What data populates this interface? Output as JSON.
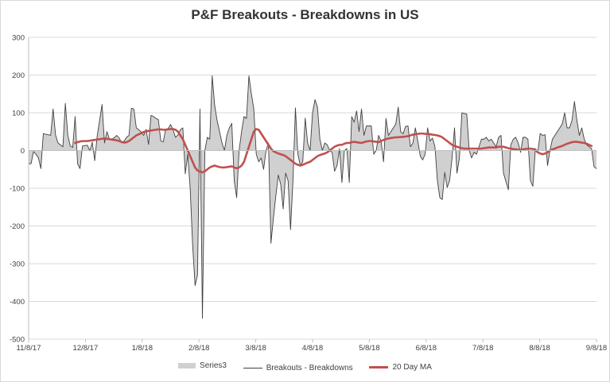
{
  "chart_data": {
    "type": "area",
    "title": "P&F Breakouts - Breakdowns in US",
    "xlabel": "",
    "ylabel": "",
    "ylim": [
      -500,
      300
    ],
    "yticks": [
      -500,
      -400,
      -300,
      -200,
      -100,
      0,
      100,
      200,
      300
    ],
    "xticks": [
      "11/8/17",
      "12/8/17",
      "1/8/18",
      "2/8/18",
      "3/8/18",
      "4/8/18",
      "5/8/18",
      "6/8/18",
      "7/8/18",
      "8/8/18",
      "9/8/18"
    ],
    "grid": true,
    "legend_position": "bottom",
    "series": [
      {
        "name": "Series3",
        "kind": "area",
        "color": "#d0d0d0",
        "values": [
          -35,
          -35,
          -3,
          -10,
          -20,
          -48,
          45,
          43,
          42,
          40,
          110,
          41,
          20,
          15,
          10,
          125,
          41,
          12,
          8,
          90,
          -35,
          -48,
          12,
          13,
          14,
          -1,
          22,
          -27,
          38,
          80,
          122,
          20,
          50,
          30,
          30,
          34,
          40,
          33,
          20,
          25,
          35,
          40,
          112,
          110,
          60,
          55,
          49,
          40,
          56,
          16,
          93,
          90,
          85,
          82,
          25,
          23,
          57,
          58,
          69,
          55,
          35,
          41,
          55,
          60,
          -62,
          -10,
          -100,
          -250,
          -358,
          -330,
          110,
          -445,
          0,
          35,
          30,
          198,
          120,
          80,
          50,
          20,
          0,
          40,
          60,
          72,
          -80,
          -125,
          0,
          50,
          90,
          85,
          198,
          150,
          110,
          -10,
          -30,
          -20,
          -50,
          0,
          20,
          -246,
          -180,
          -120,
          -65,
          -90,
          -155,
          -60,
          -80,
          -210,
          -80,
          113,
          -10,
          -40,
          -30,
          86,
          20,
          0,
          100,
          135,
          115,
          30,
          0,
          20,
          15,
          0,
          -5,
          -55,
          -40,
          5,
          -85,
          0,
          5,
          -85,
          90,
          75,
          105,
          50,
          110,
          40,
          65,
          65,
          65,
          -10,
          0,
          40,
          25,
          -30,
          85,
          40,
          50,
          60,
          70,
          115,
          50,
          44,
          64,
          65,
          10,
          20,
          60,
          25,
          -15,
          -25,
          -10,
          60,
          25,
          33,
          10,
          -80,
          -125,
          -130,
          -58,
          -98,
          -80,
          -20,
          60,
          -60,
          -20,
          100,
          98,
          97,
          0,
          -20,
          -5,
          -10,
          10,
          30,
          30,
          35,
          25,
          30,
          20,
          10,
          35,
          40,
          -60,
          -82,
          -104,
          15,
          30,
          35,
          20,
          -5,
          35,
          35,
          30,
          -80,
          -95,
          0,
          -5,
          45,
          40,
          42,
          -40,
          0,
          30,
          40,
          50,
          60,
          70,
          100,
          60,
          60,
          80,
          130,
          80,
          40,
          60,
          30,
          15,
          10,
          5,
          -43,
          -48
        ]
      },
      {
        "name": "Breakouts - Breakdowns",
        "kind": "line",
        "color": "#404040",
        "values": [
          -35,
          -35,
          -3,
          -10,
          -20,
          -48,
          45,
          43,
          42,
          40,
          110,
          41,
          20,
          15,
          10,
          125,
          41,
          12,
          8,
          90,
          -35,
          -48,
          12,
          13,
          14,
          -1,
          22,
          -27,
          38,
          80,
          122,
          20,
          50,
          30,
          30,
          34,
          40,
          33,
          20,
          25,
          35,
          40,
          112,
          110,
          60,
          55,
          49,
          40,
          56,
          16,
          93,
          90,
          85,
          82,
          25,
          23,
          57,
          58,
          69,
          55,
          35,
          41,
          55,
          60,
          -62,
          -10,
          -100,
          -250,
          -358,
          -330,
          110,
          -445,
          0,
          35,
          30,
          198,
          120,
          80,
          50,
          20,
          0,
          40,
          60,
          72,
          -80,
          -125,
          0,
          50,
          90,
          85,
          198,
          150,
          110,
          -10,
          -30,
          -20,
          -50,
          0,
          20,
          -246,
          -180,
          -120,
          -65,
          -90,
          -155,
          -60,
          -80,
          -210,
          -80,
          113,
          -10,
          -40,
          -30,
          86,
          20,
          0,
          100,
          135,
          115,
          30,
          0,
          20,
          15,
          0,
          -5,
          -55,
          -40,
          5,
          -85,
          0,
          5,
          -85,
          90,
          75,
          105,
          50,
          110,
          40,
          65,
          65,
          65,
          -10,
          0,
          40,
          25,
          -30,
          85,
          40,
          50,
          60,
          70,
          115,
          50,
          44,
          64,
          65,
          10,
          20,
          60,
          25,
          -15,
          -25,
          -10,
          60,
          25,
          33,
          10,
          -80,
          -125,
          -130,
          -58,
          -98,
          -80,
          -20,
          60,
          -60,
          -20,
          100,
          98,
          97,
          0,
          -20,
          -5,
          -10,
          10,
          30,
          30,
          35,
          25,
          30,
          20,
          10,
          35,
          40,
          -60,
          -82,
          -104,
          15,
          30,
          35,
          20,
          -5,
          35,
          35,
          30,
          -80,
          -95,
          0,
          -5,
          45,
          40,
          42,
          -40,
          0,
          30,
          40,
          50,
          60,
          70,
          100,
          60,
          60,
          80,
          130,
          80,
          40,
          60,
          30,
          15,
          10,
          5,
          -43,
          -48
        ]
      },
      {
        "name": "20 Day MA",
        "kind": "line",
        "color": "#c0504d",
        "values": [
          null,
          null,
          null,
          null,
          null,
          null,
          null,
          null,
          null,
          null,
          null,
          null,
          null,
          null,
          null,
          null,
          null,
          null,
          null,
          20,
          22,
          24,
          25,
          25,
          25,
          26,
          27,
          28,
          29,
          30,
          31,
          32,
          31,
          30,
          29,
          28,
          27,
          25,
          23,
          21,
          22,
          25,
          30,
          35,
          40,
          43,
          46,
          49,
          51,
          52,
          53,
          54,
          55,
          56,
          56,
          55,
          55,
          56,
          57,
          57,
          55,
          50,
          40,
          30,
          15,
          0,
          -15,
          -30,
          -45,
          -53,
          -56,
          -58,
          -55,
          -50,
          -45,
          -42,
          -40,
          -42,
          -44,
          -45,
          -45,
          -44,
          -43,
          -42,
          -45,
          -47,
          -45,
          -40,
          -30,
          -10,
          10,
          30,
          50,
          57,
          55,
          45,
          35,
          25,
          15,
          5,
          -2,
          -5,
          -8,
          -10,
          -12,
          -15,
          -20,
          -25,
          -30,
          -35,
          -38,
          -40,
          -38,
          -35,
          -32,
          -30,
          -25,
          -20,
          -15,
          -12,
          -10,
          -8,
          -5,
          0,
          5,
          10,
          13,
          15,
          15,
          18,
          20,
          20,
          22,
          23,
          22,
          21,
          20,
          22,
          24,
          25,
          25,
          24,
          23,
          22,
          25,
          28,
          30,
          32,
          33,
          34,
          35,
          35,
          36,
          36,
          37,
          38,
          40,
          42,
          43,
          44,
          45,
          45,
          44,
          44,
          43,
          42,
          41,
          40,
          38,
          35,
          30,
          25,
          20,
          15,
          12,
          10,
          8,
          6,
          5,
          5,
          5,
          5,
          5,
          5,
          5,
          5,
          6,
          7,
          8,
          8,
          8,
          8,
          10,
          10,
          10,
          8,
          6,
          5,
          4,
          3,
          2,
          2,
          3,
          4,
          5,
          5,
          4,
          3,
          -5,
          -8,
          -10,
          -8,
          -5,
          0,
          3,
          5,
          8,
          10,
          12,
          15,
          18,
          20,
          22,
          23,
          23,
          22,
          21,
          20,
          18,
          15,
          12
        ]
      }
    ]
  }
}
